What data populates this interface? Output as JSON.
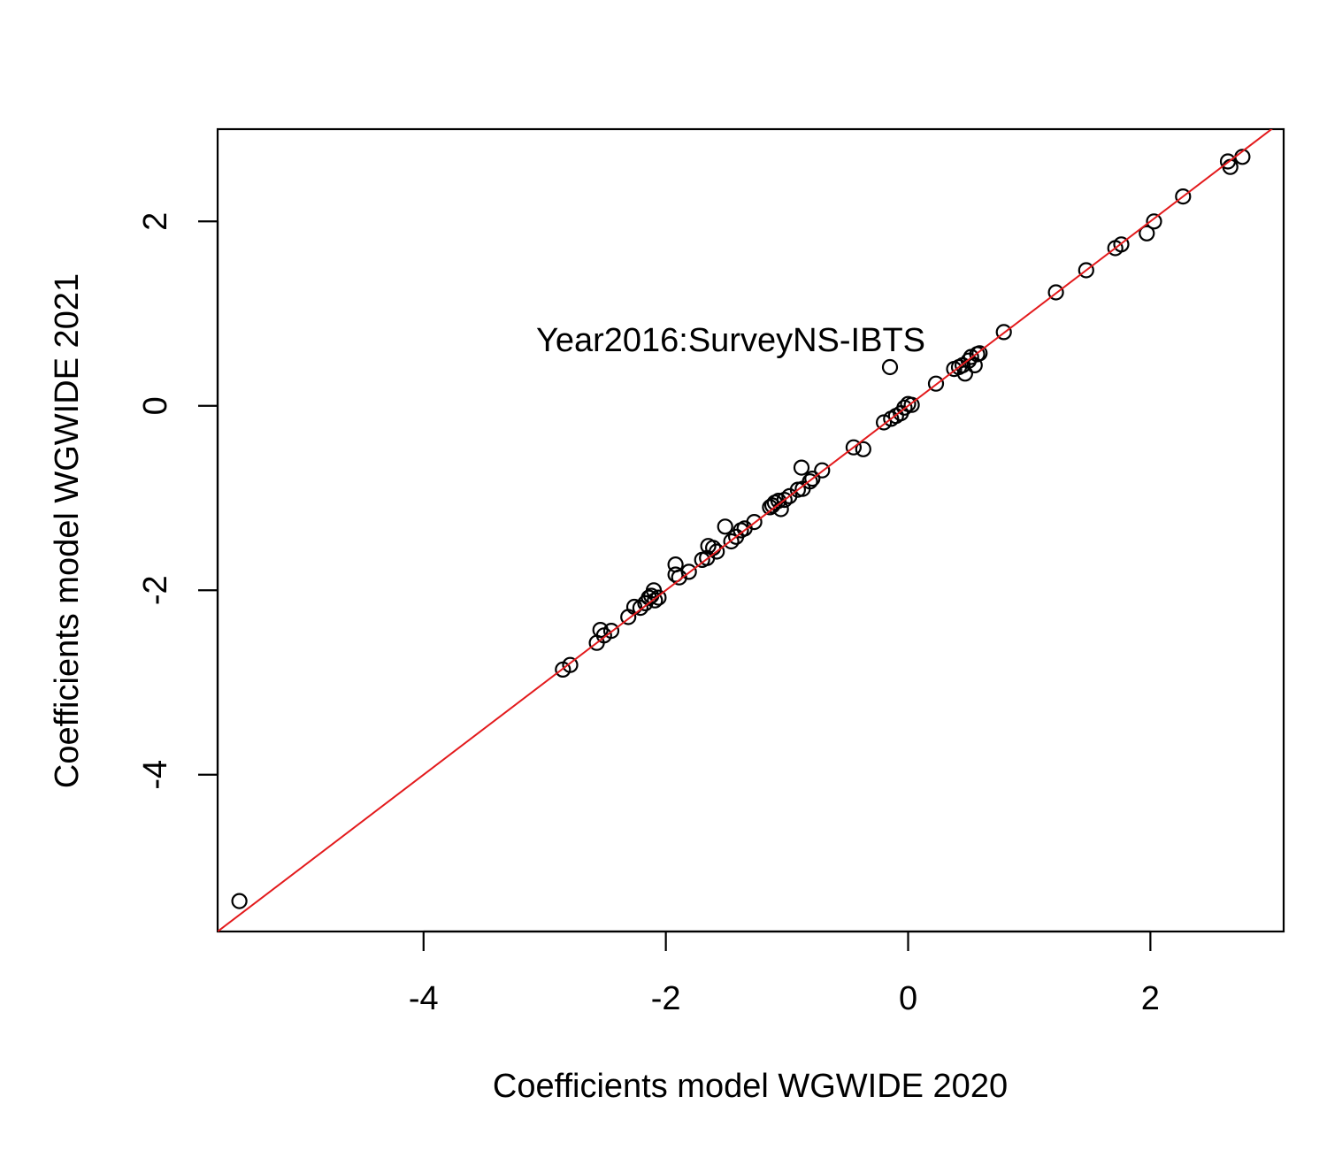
{
  "chart_data": {
    "type": "scatter",
    "xlabel": "Coefficients model WGWIDE 2020",
    "ylabel": "Coefficients model WGWIDE 2021",
    "xlim": [
      -5.7,
      3.1
    ],
    "ylim": [
      -5.7,
      3.0
    ],
    "xticks": [
      -4,
      -2,
      0,
      2
    ],
    "yticks": [
      -4,
      -2,
      0,
      2
    ],
    "tick_labels": {
      "x": [
        "-4",
        "-2",
        "0",
        "2"
      ],
      "y": [
        "-4",
        "-2",
        "0",
        "2"
      ]
    },
    "grid": false,
    "annotation": {
      "text": "Year2016:SurveyNS-IBTS",
      "x": -0.15,
      "y": 0.42
    },
    "reference_line": {
      "slope": 1,
      "intercept": 0,
      "color": "#e31a1c"
    },
    "points_color": "#000000",
    "points": [
      [
        -5.52,
        -5.37
      ],
      [
        -2.85,
        -2.86
      ],
      [
        -2.79,
        -2.81
      ],
      [
        -2.57,
        -2.57
      ],
      [
        -2.54,
        -2.43
      ],
      [
        -2.51,
        -2.49
      ],
      [
        -2.45,
        -2.44
      ],
      [
        -2.31,
        -2.29
      ],
      [
        -2.26,
        -2.18
      ],
      [
        -2.21,
        -2.19
      ],
      [
        -2.17,
        -2.14
      ],
      [
        -2.14,
        -2.08
      ],
      [
        -2.12,
        -2.06
      ],
      [
        -2.1,
        -2.0
      ],
      [
        -2.09,
        -2.11
      ],
      [
        -2.06,
        -2.08
      ],
      [
        -1.92,
        -1.72
      ],
      [
        -1.92,
        -1.83
      ],
      [
        -1.89,
        -1.86
      ],
      [
        -1.81,
        -1.8
      ],
      [
        -1.7,
        -1.67
      ],
      [
        -1.66,
        -1.65
      ],
      [
        -1.65,
        -1.52
      ],
      [
        -1.61,
        -1.54
      ],
      [
        -1.58,
        -1.58
      ],
      [
        -1.51,
        -1.31
      ],
      [
        -1.46,
        -1.47
      ],
      [
        -1.42,
        -1.42
      ],
      [
        -1.38,
        -1.35
      ],
      [
        -1.35,
        -1.33
      ],
      [
        -1.27,
        -1.26
      ],
      [
        -1.14,
        -1.1
      ],
      [
        -1.12,
        -1.08
      ],
      [
        -1.1,
        -1.05
      ],
      [
        -1.07,
        -1.03
      ],
      [
        -1.05,
        -1.12
      ],
      [
        -1.02,
        -1.02
      ],
      [
        -0.98,
        -0.98
      ],
      [
        -0.91,
        -0.91
      ],
      [
        -0.88,
        -0.67
      ],
      [
        -0.87,
        -0.9
      ],
      [
        -0.81,
        -0.82
      ],
      [
        -0.79,
        -0.79
      ],
      [
        -0.71,
        -0.7
      ],
      [
        -0.45,
        -0.45
      ],
      [
        -0.37,
        -0.47
      ],
      [
        -0.2,
        -0.18
      ],
      [
        -0.15,
        0.42
      ],
      [
        -0.14,
        -0.14
      ],
      [
        -0.1,
        -0.11
      ],
      [
        -0.06,
        -0.08
      ],
      [
        -0.03,
        -0.02
      ],
      [
        0.0,
        0.02
      ],
      [
        0.03,
        0.01
      ],
      [
        0.23,
        0.24
      ],
      [
        0.38,
        0.4
      ],
      [
        0.42,
        0.42
      ],
      [
        0.45,
        0.44
      ],
      [
        0.47,
        0.35
      ],
      [
        0.5,
        0.49
      ],
      [
        0.52,
        0.53
      ],
      [
        0.55,
        0.44
      ],
      [
        0.57,
        0.56
      ],
      [
        0.59,
        0.57
      ],
      [
        0.79,
        0.8
      ],
      [
        1.22,
        1.23
      ],
      [
        1.47,
        1.47
      ],
      [
        1.71,
        1.71
      ],
      [
        1.76,
        1.75
      ],
      [
        1.97,
        1.87
      ],
      [
        2.03,
        2.0
      ],
      [
        2.27,
        2.27
      ],
      [
        2.64,
        2.65
      ],
      [
        2.66,
        2.59
      ],
      [
        2.76,
        2.7
      ]
    ]
  }
}
